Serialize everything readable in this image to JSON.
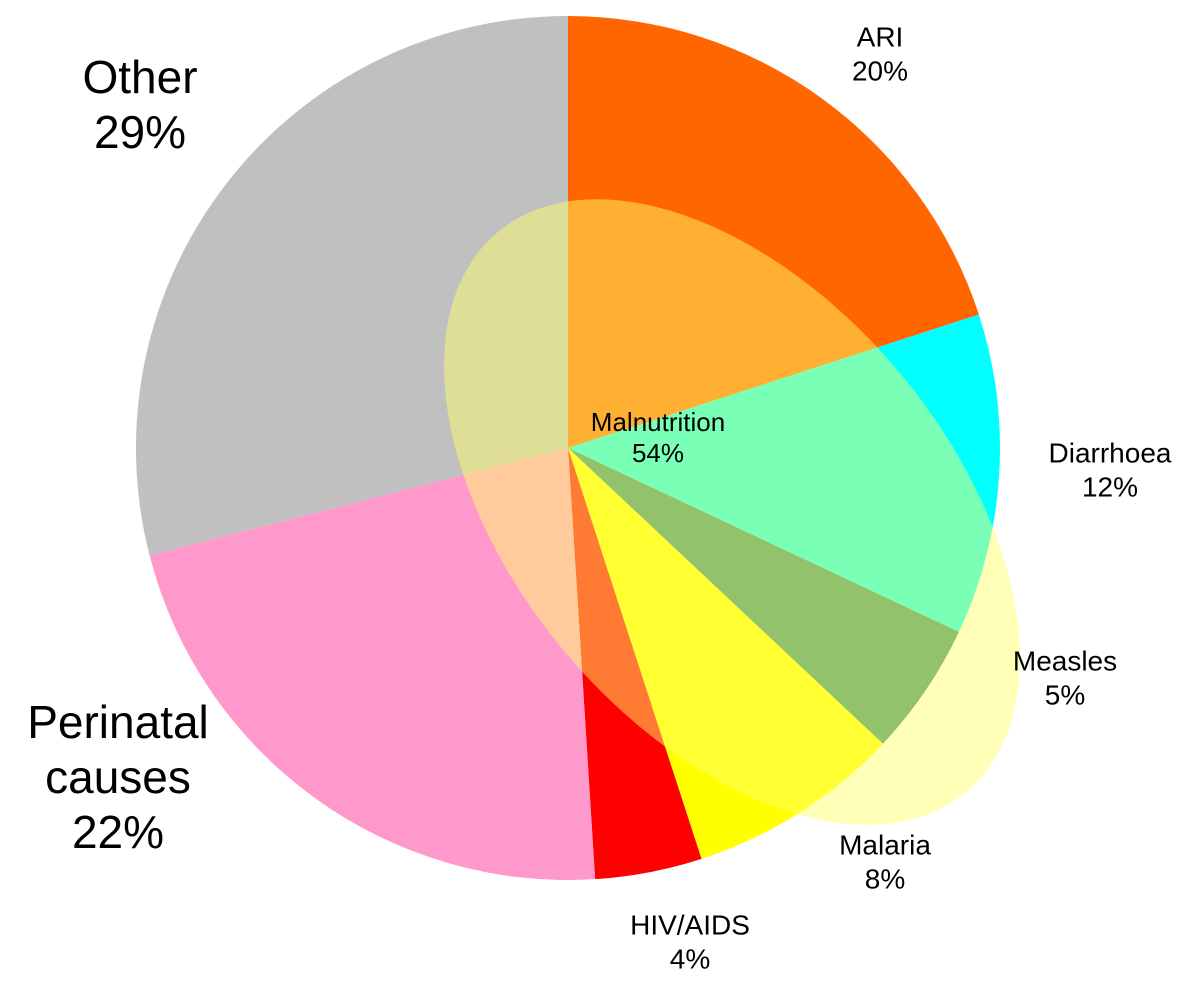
{
  "chart_data": {
    "type": "pie",
    "categories": [
      "ARI",
      "Diarrhoea",
      "Measles",
      "Malaria",
      "HIV/AIDS",
      "Perinatal causes",
      "Other"
    ],
    "values": [
      20,
      12,
      5,
      8,
      4,
      22,
      29
    ],
    "value_labels": [
      "20%",
      "12%",
      "5%",
      "8%",
      "4%",
      "22%",
      "29%"
    ],
    "colors": [
      "#FF6600",
      "#00FFFF",
      "#2E8B6E",
      "#FFFF00",
      "#FF0000",
      "#FF99CC",
      "#C0C0C0"
    ],
    "overlay": {
      "label": "Malnutrition",
      "value": 54,
      "value_label": "54%",
      "color": "#FFFF68"
    }
  }
}
